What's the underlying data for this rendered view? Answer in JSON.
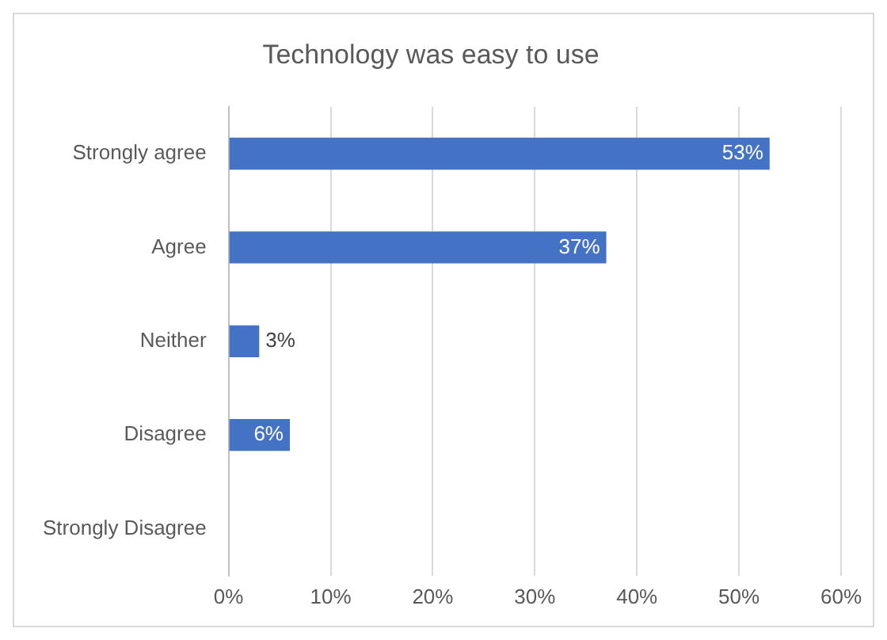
{
  "chart_data": {
    "type": "bar",
    "orientation": "horizontal",
    "title": "Technology was easy to use",
    "categories": [
      "Strongly agree",
      "Agree",
      "Neither",
      "Disagree",
      "Strongly Disagree"
    ],
    "values": [
      53,
      37,
      3,
      6,
      0
    ],
    "value_labels": [
      "53%",
      "37%",
      "3%",
      "6%",
      null
    ],
    "color": "#4472c4",
    "xlim": [
      0,
      60
    ],
    "xticks": [
      {
        "value": 0,
        "label": "0%"
      },
      {
        "value": 10,
        "label": "10%"
      },
      {
        "value": 20,
        "label": "20%"
      },
      {
        "value": 30,
        "label": "30%"
      },
      {
        "value": 40,
        "label": "40%"
      },
      {
        "value": 50,
        "label": "50%"
      },
      {
        "value": 60,
        "label": "60%"
      }
    ],
    "grid": "x"
  }
}
